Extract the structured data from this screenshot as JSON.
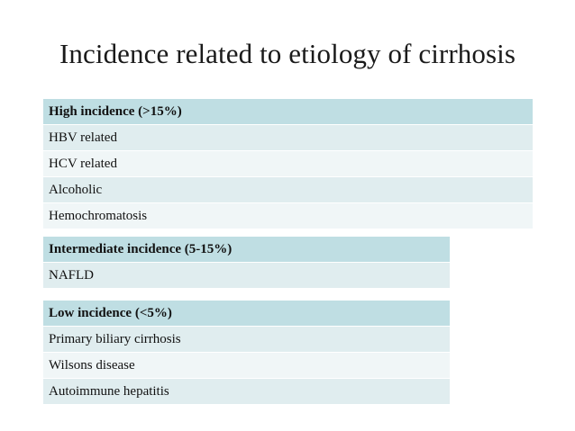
{
  "title": "Incidence related to etiology of cirrhosis",
  "tables": [
    {
      "header": "High incidence (>15%)",
      "rows": [
        "HBV related",
        "HCV related",
        "Alcoholic",
        "Hemochromatosis"
      ]
    },
    {
      "header": "Intermediate incidence (5-15%)",
      "rows": [
        "NAFLD"
      ]
    },
    {
      "header": "Low incidence (<5%)",
      "rows": [
        "Primary biliary cirrhosis",
        "Wilsons disease",
        "Autoimmune hepatitis"
      ]
    }
  ],
  "colors": {
    "header_band": "#bfdee3",
    "row_band_a": "#e0edef",
    "row_band_b": "#f0f6f7"
  }
}
